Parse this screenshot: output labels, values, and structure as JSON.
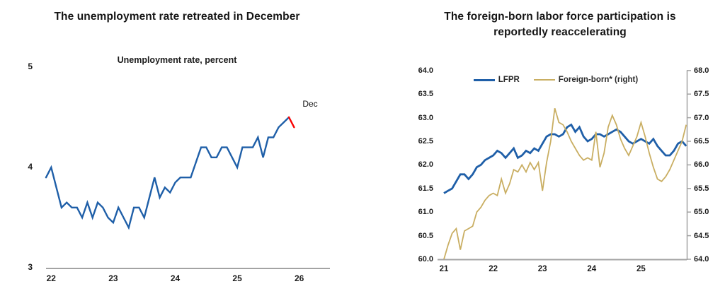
{
  "figure": {
    "background": "#FFFFFF",
    "axis_color": "#A3A3A3",
    "text_color": "#151515"
  },
  "chart_data": [
    {
      "id": "unemployment-rate",
      "type": "line",
      "title": "The unemployment rate retreated in December",
      "subtitle": "Unemployment rate, percent",
      "x_start": "2021-12",
      "x_frequency": "monthly",
      "x_tick_labels": [
        "22",
        "23",
        "24",
        "25",
        "26"
      ],
      "y_ticks": [
        5,
        4,
        3
      ],
      "ylim": [
        3,
        5
      ],
      "grid": false,
      "annotation": {
        "text": "Dec"
      },
      "axis_color": "#A3A3A3",
      "series": [
        {
          "name": "Unemployment rate, percent",
          "color": "#1F5FA8",
          "final_segment_color": "#F80000",
          "final_segment_points": 2,
          "values": [
            3.9,
            4.0,
            3.8,
            3.6,
            3.65,
            3.6,
            3.6,
            3.5,
            3.65,
            3.5,
            3.65,
            3.6,
            3.5,
            3.45,
            3.6,
            3.5,
            3.4,
            3.6,
            3.6,
            3.5,
            3.7,
            3.9,
            3.7,
            3.8,
            3.75,
            3.85,
            3.9,
            3.9,
            3.9,
            4.05,
            4.2,
            4.2,
            4.1,
            4.1,
            4.2,
            4.2,
            4.1,
            4.0,
            4.2,
            4.2,
            4.2,
            4.3,
            4.1,
            4.3,
            4.3,
            4.4,
            4.45,
            4.5,
            4.4
          ]
        }
      ]
    },
    {
      "id": "labor-force-participation",
      "type": "line",
      "title": "The foreign-born labor force participation is reportedly reaccelerating",
      "title_lines": [
        "The foreign-born labor force participation is",
        "reportedly reaccelerating"
      ],
      "x_start": "2021-01",
      "x_frequency": "monthly",
      "x_tick_labels": [
        "21",
        "22",
        "23",
        "24",
        "25"
      ],
      "left_axis_ticks": [
        64.0,
        63.5,
        63.0,
        62.5,
        62.0,
        61.5,
        61.0,
        60.5,
        60.0
      ],
      "right_axis_ticks": [
        68.0,
        67.5,
        67.0,
        66.5,
        66.0,
        65.5,
        65.0,
        64.5,
        64.0
      ],
      "left_ylim": [
        60,
        64
      ],
      "right_ylim": [
        64,
        68
      ],
      "grid": false,
      "legend_position": "top",
      "axis_color": "#A3A3A3",
      "series": [
        {
          "name": "LFPR",
          "axis": "left",
          "color": "#1F5FA8",
          "values": [
            61.4,
            61.45,
            61.5,
            61.65,
            61.8,
            61.8,
            61.7,
            61.8,
            61.95,
            62.0,
            62.1,
            62.15,
            62.2,
            62.3,
            62.25,
            62.15,
            62.25,
            62.35,
            62.15,
            62.2,
            62.3,
            62.25,
            62.35,
            62.3,
            62.45,
            62.6,
            62.65,
            62.65,
            62.6,
            62.65,
            62.8,
            62.85,
            62.7,
            62.8,
            62.6,
            62.5,
            62.55,
            62.65,
            62.65,
            62.6,
            62.65,
            62.7,
            62.75,
            62.7,
            62.6,
            62.5,
            62.45,
            62.5,
            62.55,
            62.5,
            62.45,
            62.55,
            62.4,
            62.3,
            62.2,
            62.2,
            62.3,
            62.45,
            62.5,
            62.4
          ]
        },
        {
          "name": "Foreign-born* (right)",
          "axis": "right",
          "color": "#C9AE62",
          "values": [
            64.0,
            64.3,
            64.55,
            64.65,
            64.2,
            64.6,
            64.65,
            64.7,
            65.0,
            65.1,
            65.25,
            65.35,
            65.4,
            65.35,
            65.7,
            65.4,
            65.6,
            65.9,
            65.85,
            66.0,
            65.85,
            66.05,
            65.9,
            66.05,
            65.45,
            66.05,
            66.5,
            67.2,
            66.9,
            66.85,
            66.7,
            66.5,
            66.35,
            66.2,
            66.1,
            66.15,
            66.1,
            66.7,
            65.95,
            66.25,
            66.8,
            67.05,
            66.85,
            66.55,
            66.35,
            66.2,
            66.4,
            66.6,
            66.9,
            66.6,
            66.25,
            65.95,
            65.7,
            65.65,
            65.75,
            65.9,
            66.1,
            66.3,
            66.5,
            66.85
          ]
        }
      ]
    }
  ]
}
